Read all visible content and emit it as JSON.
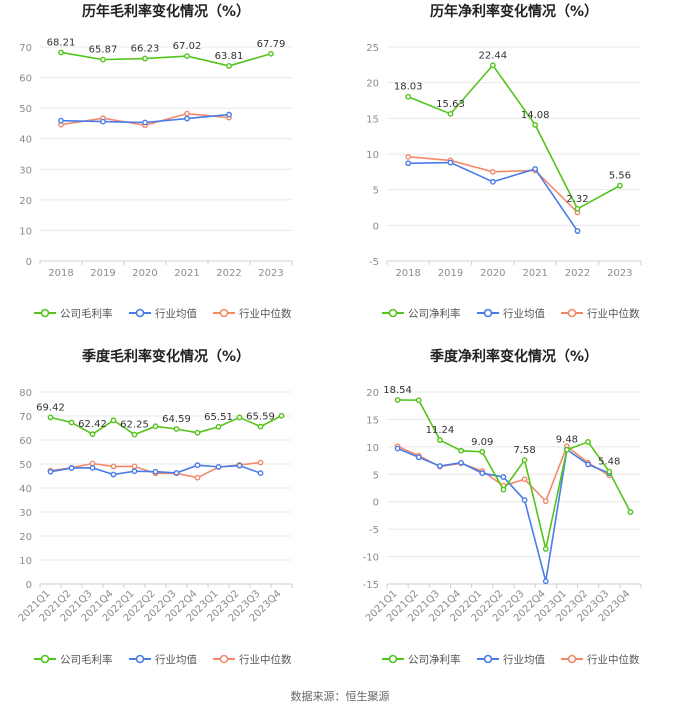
{
  "source_note": "数据来源：恒生聚源",
  "colors": {
    "company": "#52c41a",
    "industry_avg": "#4a7be8",
    "industry_median": "#f28a6a",
    "grid": "#e8e8e8",
    "axis_text": "#8c8c8c",
    "title": "#222222"
  },
  "chart_data": [
    {
      "id": "annual-gross",
      "type": "line",
      "title": "历年毛利率变化情况（%）",
      "categories": [
        "2018",
        "2019",
        "2020",
        "2021",
        "2022",
        "2023"
      ],
      "ylim": [
        0,
        70
      ],
      "yticks": [
        0,
        10,
        20,
        30,
        40,
        50,
        60,
        70
      ],
      "grid": true,
      "legend": "bottom",
      "series": [
        {
          "name": "公司毛利率",
          "color_key": "company",
          "labeled": true,
          "values": [
            68.21,
            65.87,
            66.23,
            67.02,
            63.81,
            67.79
          ],
          "labels": [
            "68.21",
            "65.87",
            "66.23",
            "67.02",
            "63.81",
            "67.79"
          ]
        },
        {
          "name": "行业均值",
          "color_key": "industry_avg",
          "values": [
            45.9,
            45.6,
            45.3,
            46.6,
            47.9,
            null
          ]
        },
        {
          "name": "行业中位数",
          "color_key": "industry_median",
          "values": [
            44.6,
            46.7,
            44.4,
            48.2,
            46.9,
            null
          ]
        }
      ]
    },
    {
      "id": "annual-net",
      "type": "line",
      "title": "历年净利率变化情况（%）",
      "categories": [
        "2018",
        "2019",
        "2020",
        "2021",
        "2022",
        "2023"
      ],
      "ylim": [
        -5,
        25
      ],
      "yticks": [
        -5,
        0,
        5,
        10,
        15,
        20,
        25
      ],
      "grid": true,
      "legend": "bottom",
      "series": [
        {
          "name": "公司净利率",
          "color_key": "company",
          "labeled": true,
          "values": [
            18.03,
            15.63,
            22.44,
            14.08,
            2.32,
            5.56
          ],
          "labels": [
            "18.03",
            "15.63",
            "22.44",
            "14.08",
            "2.32",
            "5.56"
          ]
        },
        {
          "name": "行业均值",
          "color_key": "industry_avg",
          "values": [
            8.7,
            8.8,
            6.1,
            7.9,
            -0.8,
            null
          ]
        },
        {
          "name": "行业中位数",
          "color_key": "industry_median",
          "values": [
            9.6,
            9.1,
            7.5,
            7.7,
            1.8,
            null
          ]
        }
      ]
    },
    {
      "id": "quarterly-gross",
      "type": "line",
      "title": "季度毛利率变化情况（%）",
      "categories": [
        "2021Q1",
        "2021Q2",
        "2021Q3",
        "2021Q4",
        "2022Q1",
        "2022Q2",
        "2022Q3",
        "2022Q4",
        "2023Q1",
        "2023Q2",
        "2023Q3",
        "2023Q4"
      ],
      "ylim": [
        0,
        80
      ],
      "yticks": [
        0,
        10,
        20,
        30,
        40,
        50,
        60,
        70,
        80
      ],
      "grid": true,
      "legend": "bottom",
      "series": [
        {
          "name": "公司毛利率",
          "color_key": "company",
          "labeled": true,
          "values": [
            69.42,
            67.3,
            62.42,
            68.2,
            62.25,
            65.7,
            64.59,
            63.0,
            65.51,
            69.4,
            65.59,
            70.1
          ],
          "labels": [
            "69.42",
            null,
            "62.42",
            null,
            "62.25",
            null,
            "64.59",
            null,
            "65.51",
            null,
            "65.59",
            null
          ]
        },
        {
          "name": "行业均值",
          "color_key": "industry_avg",
          "values": [
            46.8,
            48.3,
            48.4,
            45.6,
            47.0,
            46.8,
            46.3,
            49.5,
            48.8,
            49.3,
            46.2,
            null
          ]
        },
        {
          "name": "行业中位数",
          "color_key": "industry_median",
          "values": [
            47.2,
            48.4,
            50.2,
            49.0,
            49.0,
            46.1,
            46.1,
            44.3,
            48.7,
            49.6,
            50.6,
            null
          ]
        }
      ]
    },
    {
      "id": "quarterly-net",
      "type": "line",
      "title": "季度净利率变化情况（%）",
      "categories": [
        "2021Q1",
        "2021Q2",
        "2021Q3",
        "2021Q4",
        "2022Q1",
        "2022Q2",
        "2022Q3",
        "2022Q4",
        "2023Q1",
        "2023Q2",
        "2023Q3",
        "2023Q4"
      ],
      "ylim": [
        -15,
        20
      ],
      "yticks": [
        -15,
        -10,
        -5,
        0,
        5,
        10,
        15,
        20
      ],
      "grid": true,
      "legend": "bottom",
      "series": [
        {
          "name": "公司净利率",
          "color_key": "company",
          "labeled": true,
          "values": [
            18.54,
            18.5,
            11.24,
            9.3,
            9.09,
            2.2,
            7.58,
            -8.6,
            9.48,
            10.9,
            5.48,
            -1.9
          ],
          "labels": [
            "18.54",
            null,
            "11.24",
            null,
            "9.09",
            null,
            "7.58",
            null,
            "9.48",
            null,
            "5.48",
            null
          ]
        },
        {
          "name": "行业均值",
          "color_key": "industry_avg",
          "values": [
            9.7,
            8.1,
            6.5,
            7.1,
            5.2,
            4.5,
            0.3,
            -14.5,
            9.5,
            6.8,
            5.2,
            null
          ]
        },
        {
          "name": "行业中位数",
          "color_key": "industry_median",
          "values": [
            10.1,
            8.4,
            6.4,
            7.0,
            5.6,
            2.9,
            4.1,
            0.1,
            10.1,
            7.1,
            4.8,
            null
          ]
        }
      ]
    }
  ]
}
